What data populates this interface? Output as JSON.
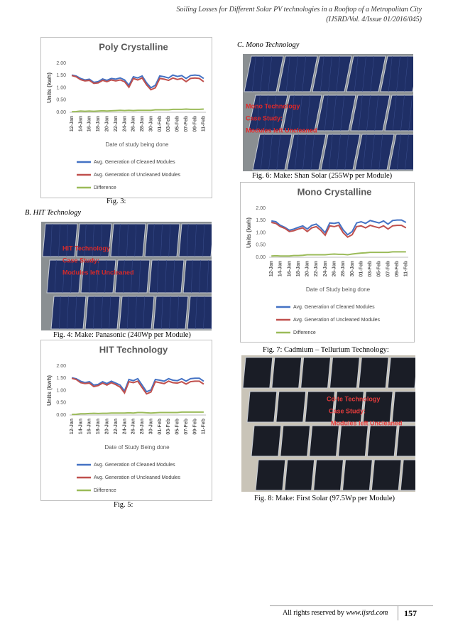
{
  "header": {
    "title": "Soiling Losses for Different Solar PV technologies in a Rooftop of a Metropolitan City",
    "issue": "(IJSRD/Vol. 4/Issue 01/2016/045)"
  },
  "headings": {
    "hit": "B. HIT Technology",
    "mono": "C. Mono Technology"
  },
  "captions": {
    "fig3": "Fig. 3:",
    "fig4": "Fig. 4: Make: Panasonic (240Wp per Module)",
    "fig5": "Fig. 5:",
    "fig6": "Fig. 6: Make: Shan Solar (255Wp per Module)",
    "fig7": "Fig. 7: Cadmium – Tellurium Technology:",
    "fig8": "Fig. 8: Make: First Solar (97.5Wp per Module)"
  },
  "photos": [
    {
      "label_lines": [
        "HIT Technology",
        "Case Study:",
        "Modules left Uncleaned"
      ]
    },
    {
      "label_lines": [
        "Mono Technology",
        "Case Study:",
        "Modules left Uncleaned"
      ]
    },
    {
      "label_lines": [
        "Cd-te Technology",
        "Case Study:",
        "Modules left Uncleaned"
      ]
    }
  ],
  "chart_data": [
    {
      "type": "line",
      "title": "Poly Crystalline",
      "x_label": "Date of study being done",
      "y_label": "Units (kwh)",
      "categories": [
        "12-Jan",
        null,
        "14-Jan",
        null,
        "16-Jan",
        null,
        "18-Jan",
        null,
        "20-Jan",
        null,
        "22-Jan",
        null,
        "24-Jan",
        null,
        "26-Jan",
        null,
        "28-Jan",
        null,
        "30-Jan",
        null,
        "01-Feb",
        null,
        "03-Feb",
        null,
        "05-Feb",
        null,
        "07-Feb",
        null,
        "09-Feb",
        null,
        "11-Feb"
      ],
      "ylim": [
        0,
        2
      ],
      "yticks": [
        {
          "value": 0,
          "label": "0.00"
        },
        {
          "value": 0.5,
          "label": "0.50"
        },
        {
          "value": 1,
          "label": "1.00"
        },
        {
          "value": 1.5,
          "label": "1.50"
        },
        {
          "value": 2,
          "label": "2.00"
        }
      ],
      "grid": false,
      "legend": "bottom",
      "series": [
        {
          "name": "Avg. Generation of Cleaned Modules",
          "color": "#4472c4",
          "values": [
            1.52,
            1.48,
            1.38,
            1.32,
            1.35,
            1.22,
            1.25,
            1.36,
            1.3,
            1.38,
            1.35,
            1.4,
            1.32,
            1.1,
            1.45,
            1.4,
            1.48,
            1.2,
            1.0,
            1.1,
            1.48,
            1.45,
            1.4,
            1.52,
            1.46,
            1.5,
            1.38,
            1.5,
            1.52,
            1.5,
            1.38
          ]
        },
        {
          "name": "Avg. Generation of Uncleaned Modules",
          "color": "#c0504d",
          "values": [
            1.5,
            1.45,
            1.33,
            1.28,
            1.3,
            1.18,
            1.2,
            1.3,
            1.25,
            1.32,
            1.28,
            1.32,
            1.25,
            1.02,
            1.38,
            1.32,
            1.4,
            1.12,
            0.92,
            1.0,
            1.38,
            1.35,
            1.3,
            1.4,
            1.34,
            1.38,
            1.25,
            1.38,
            1.4,
            1.38,
            1.25
          ]
        },
        {
          "name": "Difference",
          "color": "#9bbb59",
          "values": [
            0.02,
            0.03,
            0.05,
            0.04,
            0.05,
            0.04,
            0.05,
            0.06,
            0.05,
            0.06,
            0.07,
            0.08,
            0.07,
            0.08,
            0.07,
            0.08,
            0.08,
            0.08,
            0.08,
            0.1,
            0.1,
            0.1,
            0.1,
            0.12,
            0.12,
            0.12,
            0.13,
            0.12,
            0.12,
            0.12,
            0.13
          ]
        }
      ]
    },
    {
      "type": "line",
      "title": "Mono Crystalline",
      "x_label": "Date of Study being done",
      "y_label": "Units (kwh)",
      "categories": [
        "12-Jan",
        null,
        "14-Jan",
        null,
        "16-Jan",
        null,
        "18-Jan",
        null,
        "20-Jan",
        null,
        "22-Jan",
        null,
        "24-Jan",
        null,
        "26-Jan",
        null,
        "28-Jan",
        null,
        "30-Jan",
        null,
        "01-Feb",
        null,
        "03-Feb",
        null,
        "05-Feb",
        null,
        "07-Feb",
        null,
        "09-Feb",
        null,
        "11-Feb"
      ],
      "ylim": [
        0,
        2
      ],
      "yticks": [
        {
          "value": 0,
          "label": "0.00"
        },
        {
          "value": 0.5,
          "label": "0.50"
        },
        {
          "value": 1,
          "label": "1.00"
        },
        {
          "value": 1.5,
          "label": "1.50"
        },
        {
          "value": 2,
          "label": "2.00"
        }
      ],
      "grid": false,
      "legend": "bottom",
      "series": [
        {
          "name": "Avg. Generation of Cleaned Modules",
          "color": "#4472c4",
          "values": [
            1.48,
            1.45,
            1.3,
            1.22,
            1.1,
            1.15,
            1.22,
            1.28,
            1.15,
            1.3,
            1.35,
            1.2,
            1.0,
            1.4,
            1.38,
            1.42,
            1.12,
            0.92,
            1.05,
            1.4,
            1.45,
            1.38,
            1.5,
            1.45,
            1.4,
            1.48,
            1.35,
            1.5,
            1.52,
            1.52,
            1.42
          ]
        },
        {
          "name": "Avg. Generation of Uncleaned Modules",
          "color": "#c0504d",
          "values": [
            1.42,
            1.38,
            1.25,
            1.18,
            1.05,
            1.08,
            1.15,
            1.2,
            1.05,
            1.2,
            1.25,
            1.1,
            0.9,
            1.28,
            1.25,
            1.3,
            1.0,
            0.82,
            0.92,
            1.25,
            1.28,
            1.2,
            1.3,
            1.25,
            1.2,
            1.28,
            1.15,
            1.28,
            1.3,
            1.3,
            1.2
          ]
        },
        {
          "name": "Difference",
          "color": "#9bbb59",
          "values": [
            0.05,
            0.06,
            0.05,
            0.05,
            0.05,
            0.07,
            0.07,
            0.08,
            0.1,
            0.1,
            0.1,
            0.1,
            0.1,
            0.12,
            0.13,
            0.12,
            0.12,
            0.1,
            0.13,
            0.15,
            0.17,
            0.18,
            0.2,
            0.2,
            0.2,
            0.2,
            0.2,
            0.22,
            0.22,
            0.22,
            0.22
          ]
        }
      ]
    },
    {
      "type": "line",
      "title": "HIT Technology",
      "x_label": "Date of Study Being done",
      "y_label": "Units (kwh)",
      "categories": [
        "12-Jan",
        null,
        "14-Jan",
        null,
        "16-Jan",
        null,
        "18-Jan",
        null,
        "20-Jan",
        null,
        "22-Jan",
        null,
        "24-Jan",
        null,
        "26-Jan",
        null,
        "28-Jan",
        null,
        "30-Jan",
        null,
        "01-Feb",
        null,
        "03-Feb",
        null,
        "05-Feb",
        null,
        "07-Feb",
        null,
        "09-Feb",
        null,
        "11-Feb"
      ],
      "ylim": [
        0,
        2
      ],
      "yticks": [
        {
          "value": 0,
          "label": "0.00"
        },
        {
          "value": 0.5,
          "label": "0.50"
        },
        {
          "value": 1,
          "label": "1.00"
        },
        {
          "value": 1.5,
          "label": "1.50"
        },
        {
          "value": 2,
          "label": "2.00"
        }
      ],
      "grid": false,
      "legend": "bottom",
      "series": [
        {
          "name": "Avg. Generation of Cleaned Modules",
          "color": "#4472c4",
          "values": [
            1.52,
            1.48,
            1.38,
            1.32,
            1.36,
            1.22,
            1.25,
            1.36,
            1.28,
            1.38,
            1.3,
            1.22,
            0.98,
            1.45,
            1.4,
            1.48,
            1.22,
            0.95,
            1.02,
            1.45,
            1.42,
            1.38,
            1.48,
            1.42,
            1.4,
            1.48,
            1.38,
            1.48,
            1.5,
            1.5,
            1.38
          ]
        },
        {
          "name": "Avg. Generation of Uncleaned Modules",
          "color": "#c0504d",
          "values": [
            1.5,
            1.45,
            1.32,
            1.28,
            1.3,
            1.16,
            1.2,
            1.3,
            1.22,
            1.32,
            1.24,
            1.14,
            0.9,
            1.36,
            1.32,
            1.38,
            1.12,
            0.86,
            0.94,
            1.36,
            1.32,
            1.28,
            1.38,
            1.32,
            1.3,
            1.36,
            1.26,
            1.36,
            1.38,
            1.38,
            1.26
          ]
        },
        {
          "name": "Difference",
          "color": "#9bbb59",
          "values": [
            0.02,
            0.03,
            0.05,
            0.05,
            0.06,
            0.07,
            0.06,
            0.07,
            0.07,
            0.08,
            0.08,
            0.08,
            0.08,
            0.09,
            0.08,
            0.1,
            0.1,
            0.09,
            0.08,
            0.09,
            0.1,
            0.1,
            0.1,
            0.1,
            0.1,
            0.12,
            0.12,
            0.12,
            0.12,
            0.12,
            0.12
          ]
        }
      ]
    }
  ],
  "footer": {
    "text": "All rights reserved by",
    "site": "www.ijsrd.com",
    "page": "157"
  }
}
